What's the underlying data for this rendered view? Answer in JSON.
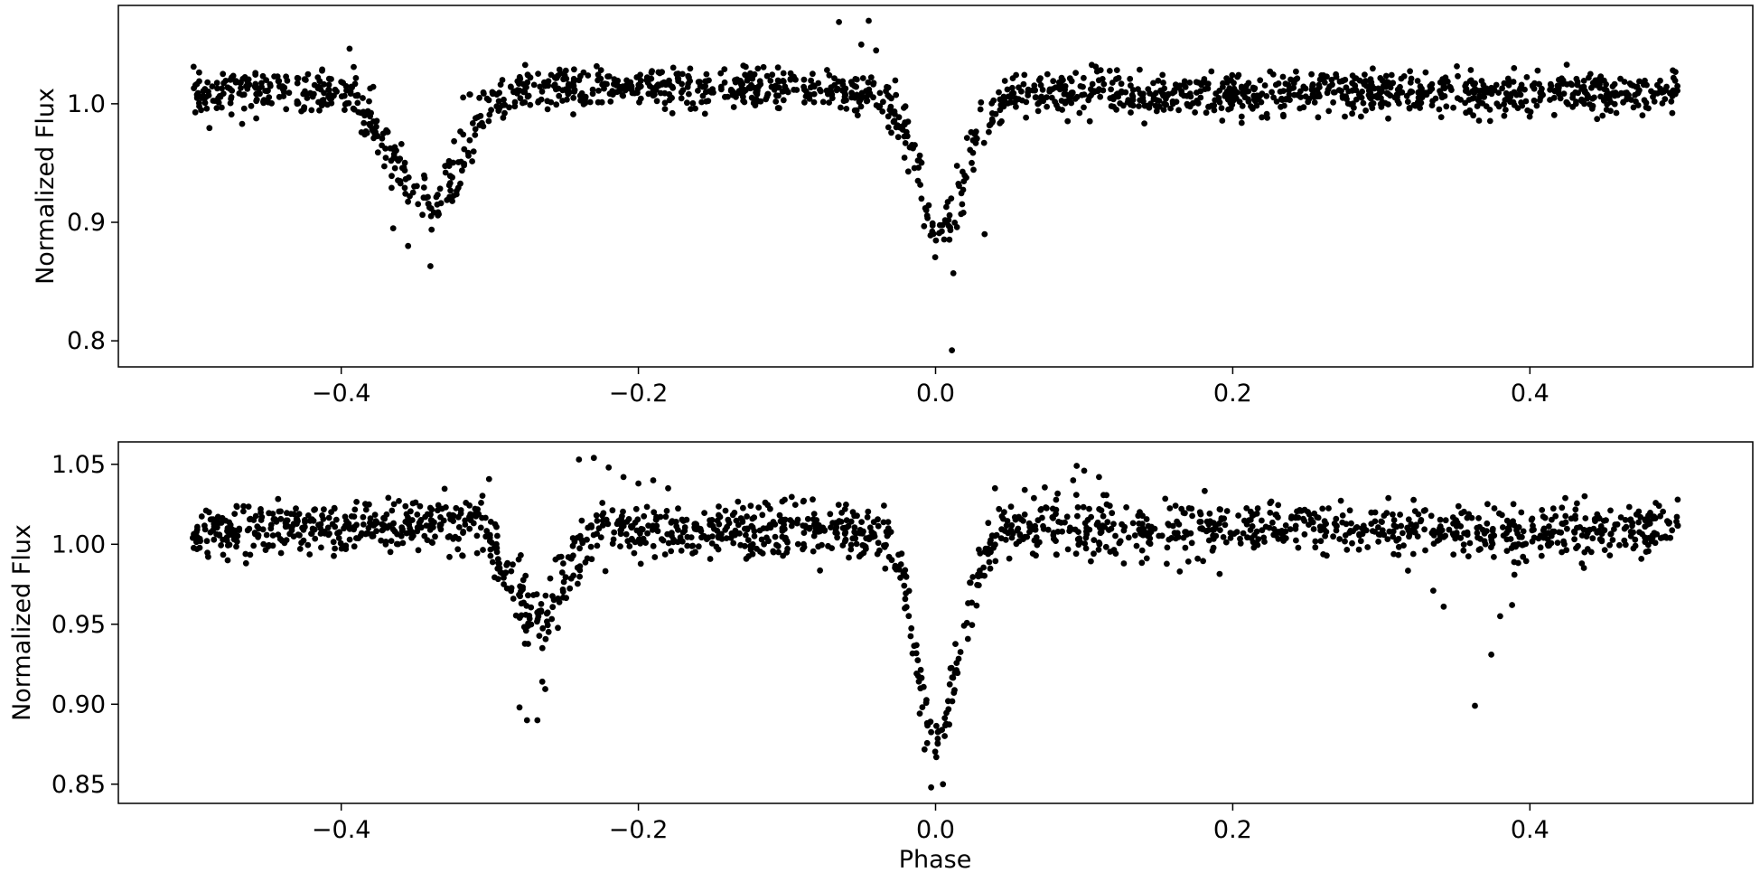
{
  "chart_data": [
    {
      "type": "scatter",
      "xlabel": "",
      "ylabel": "Normalized Flux",
      "xlim": [
        -0.55,
        0.55
      ],
      "ylim": [
        0.778,
        1.083
      ],
      "xticks": [
        -0.4,
        -0.2,
        0.0,
        0.2,
        0.4
      ],
      "xtick_labels": [
        "−0.4",
        "−0.2",
        "0.0",
        "0.2",
        "0.4"
      ],
      "yticks": [
        0.8,
        0.9,
        1.0
      ],
      "ytick_labels": [
        "0.8",
        "0.9",
        "1.0"
      ],
      "marker_color": "#000000",
      "grid": false,
      "eclipses": [
        {
          "center": -0.34,
          "half_width": 0.055,
          "depth": 0.09,
          "scatter": 0.014
        },
        {
          "center": 0.0,
          "half_width": 0.035,
          "depth": 0.12,
          "scatter": 0.012
        }
      ],
      "series": [
        {
          "x": [
            -0.5,
            -0.48,
            -0.46,
            -0.44,
            -0.42,
            -0.4,
            -0.39,
            -0.38,
            -0.37,
            -0.36,
            -0.35,
            -0.345,
            -0.34,
            -0.335,
            -0.33,
            -0.32,
            -0.31,
            -0.3,
            -0.29,
            -0.28,
            -0.25,
            -0.2,
            -0.15,
            -0.1,
            -0.06,
            -0.04,
            -0.03,
            -0.02,
            -0.015,
            -0.01,
            -0.005,
            0.0,
            0.005,
            0.01,
            0.015,
            0.02,
            0.03,
            0.04,
            0.05,
            0.1,
            0.15,
            0.2,
            0.25,
            0.3,
            0.35,
            0.4,
            0.45,
            0.5
          ],
          "y": [
            1.008,
            1.01,
            1.012,
            1.01,
            1.01,
            1.008,
            1.0,
            0.985,
            0.965,
            0.945,
            0.925,
            0.918,
            0.915,
            0.917,
            0.925,
            0.955,
            0.985,
            1.003,
            1.008,
            1.01,
            1.012,
            1.013,
            1.012,
            1.012,
            1.009,
            1.007,
            1.0,
            0.975,
            0.955,
            0.935,
            0.915,
            0.895,
            0.89,
            0.9,
            0.92,
            0.945,
            0.975,
            0.995,
            1.008,
            1.01,
            1.008,
            1.008,
            1.009,
            1.01,
            1.008,
            1.008,
            1.009,
            1.01
          ]
        }
      ],
      "outliers": [
        {
          "x": -0.34,
          "y": 0.863
        },
        {
          "x": -0.355,
          "y": 0.88
        },
        {
          "x": -0.365,
          "y": 0.895
        },
        {
          "x": 0.011,
          "y": 0.792
        },
        {
          "x": 0.012,
          "y": 0.857
        },
        {
          "x": 0.033,
          "y": 0.89
        },
        {
          "x": -0.065,
          "y": 1.069
        },
        {
          "x": -0.05,
          "y": 1.05
        },
        {
          "x": -0.045,
          "y": 1.07
        },
        {
          "x": -0.04,
          "y": 1.045
        }
      ]
    },
    {
      "type": "scatter",
      "xlabel": "Phase",
      "ylabel": "Normalized Flux",
      "xlim": [
        -0.55,
        0.55
      ],
      "ylim": [
        0.838,
        1.064
      ],
      "xticks": [
        -0.4,
        -0.2,
        0.0,
        0.2,
        0.4
      ],
      "xtick_labels": [
        "−0.4",
        "−0.2",
        "0.0",
        "0.2",
        "0.4"
      ],
      "yticks": [
        0.85,
        0.9,
        0.95,
        1.0,
        1.05
      ],
      "ytick_labels": [
        "0.85",
        "0.90",
        "0.95",
        "1.00",
        "1.05"
      ],
      "marker_color": "#000000",
      "grid": false,
      "eclipses": [
        {
          "center": -0.272,
          "half_width": 0.033,
          "depth": 0.06,
          "scatter": 0.013
        },
        {
          "center": 0.0,
          "half_width": 0.03,
          "depth": 0.122,
          "scatter": 0.009
        }
      ],
      "series": [
        {
          "x": [
            -0.5,
            -0.45,
            -0.4,
            -0.35,
            -0.32,
            -0.3,
            -0.29,
            -0.28,
            -0.272,
            -0.265,
            -0.255,
            -0.245,
            -0.23,
            -0.2,
            -0.15,
            -0.1,
            -0.05,
            -0.03,
            -0.02,
            -0.015,
            -0.01,
            -0.005,
            0.0,
            0.005,
            0.01,
            0.015,
            0.02,
            0.03,
            0.05,
            0.1,
            0.15,
            0.2,
            0.25,
            0.3,
            0.35,
            0.4,
            0.45,
            0.5
          ],
          "y": [
            1.008,
            1.009,
            1.01,
            1.012,
            1.015,
            1.005,
            0.985,
            0.965,
            0.952,
            0.95,
            0.965,
            0.99,
            1.005,
            1.008,
            1.008,
            1.01,
            1.008,
            1.0,
            0.975,
            0.94,
            0.905,
            0.885,
            0.88,
            0.885,
            0.9,
            0.925,
            0.95,
            0.99,
            1.008,
            1.01,
            1.008,
            1.01,
            1.012,
            1.01,
            1.008,
            1.007,
            1.008,
            1.01
          ]
        }
      ],
      "outliers": [
        {
          "x": -0.24,
          "y": 1.053
        },
        {
          "x": -0.23,
          "y": 1.054
        },
        {
          "x": -0.22,
          "y": 1.048
        },
        {
          "x": -0.21,
          "y": 1.042
        },
        {
          "x": -0.2,
          "y": 1.038
        },
        {
          "x": -0.19,
          "y": 1.04
        },
        {
          "x": -0.18,
          "y": 1.035
        },
        {
          "x": -0.275,
          "y": 0.89
        },
        {
          "x": -0.28,
          "y": 0.898
        },
        {
          "x": -0.268,
          "y": 0.89
        },
        {
          "x": -0.003,
          "y": 0.848
        },
        {
          "x": 0.005,
          "y": 0.85
        },
        {
          "x": 0.04,
          "y": 1.035
        },
        {
          "x": 0.06,
          "y": 1.034
        },
        {
          "x": 0.095,
          "y": 1.049
        },
        {
          "x": 0.1,
          "y": 1.046
        },
        {
          "x": 0.11,
          "y": 1.042
        },
        {
          "x": 0.335,
          "y": 0.971
        },
        {
          "x": 0.342,
          "y": 0.961
        },
        {
          "x": 0.363,
          "y": 0.899
        },
        {
          "x": 0.374,
          "y": 0.931
        },
        {
          "x": 0.38,
          "y": 0.955
        },
        {
          "x": 0.388,
          "y": 0.962
        }
      ]
    }
  ]
}
